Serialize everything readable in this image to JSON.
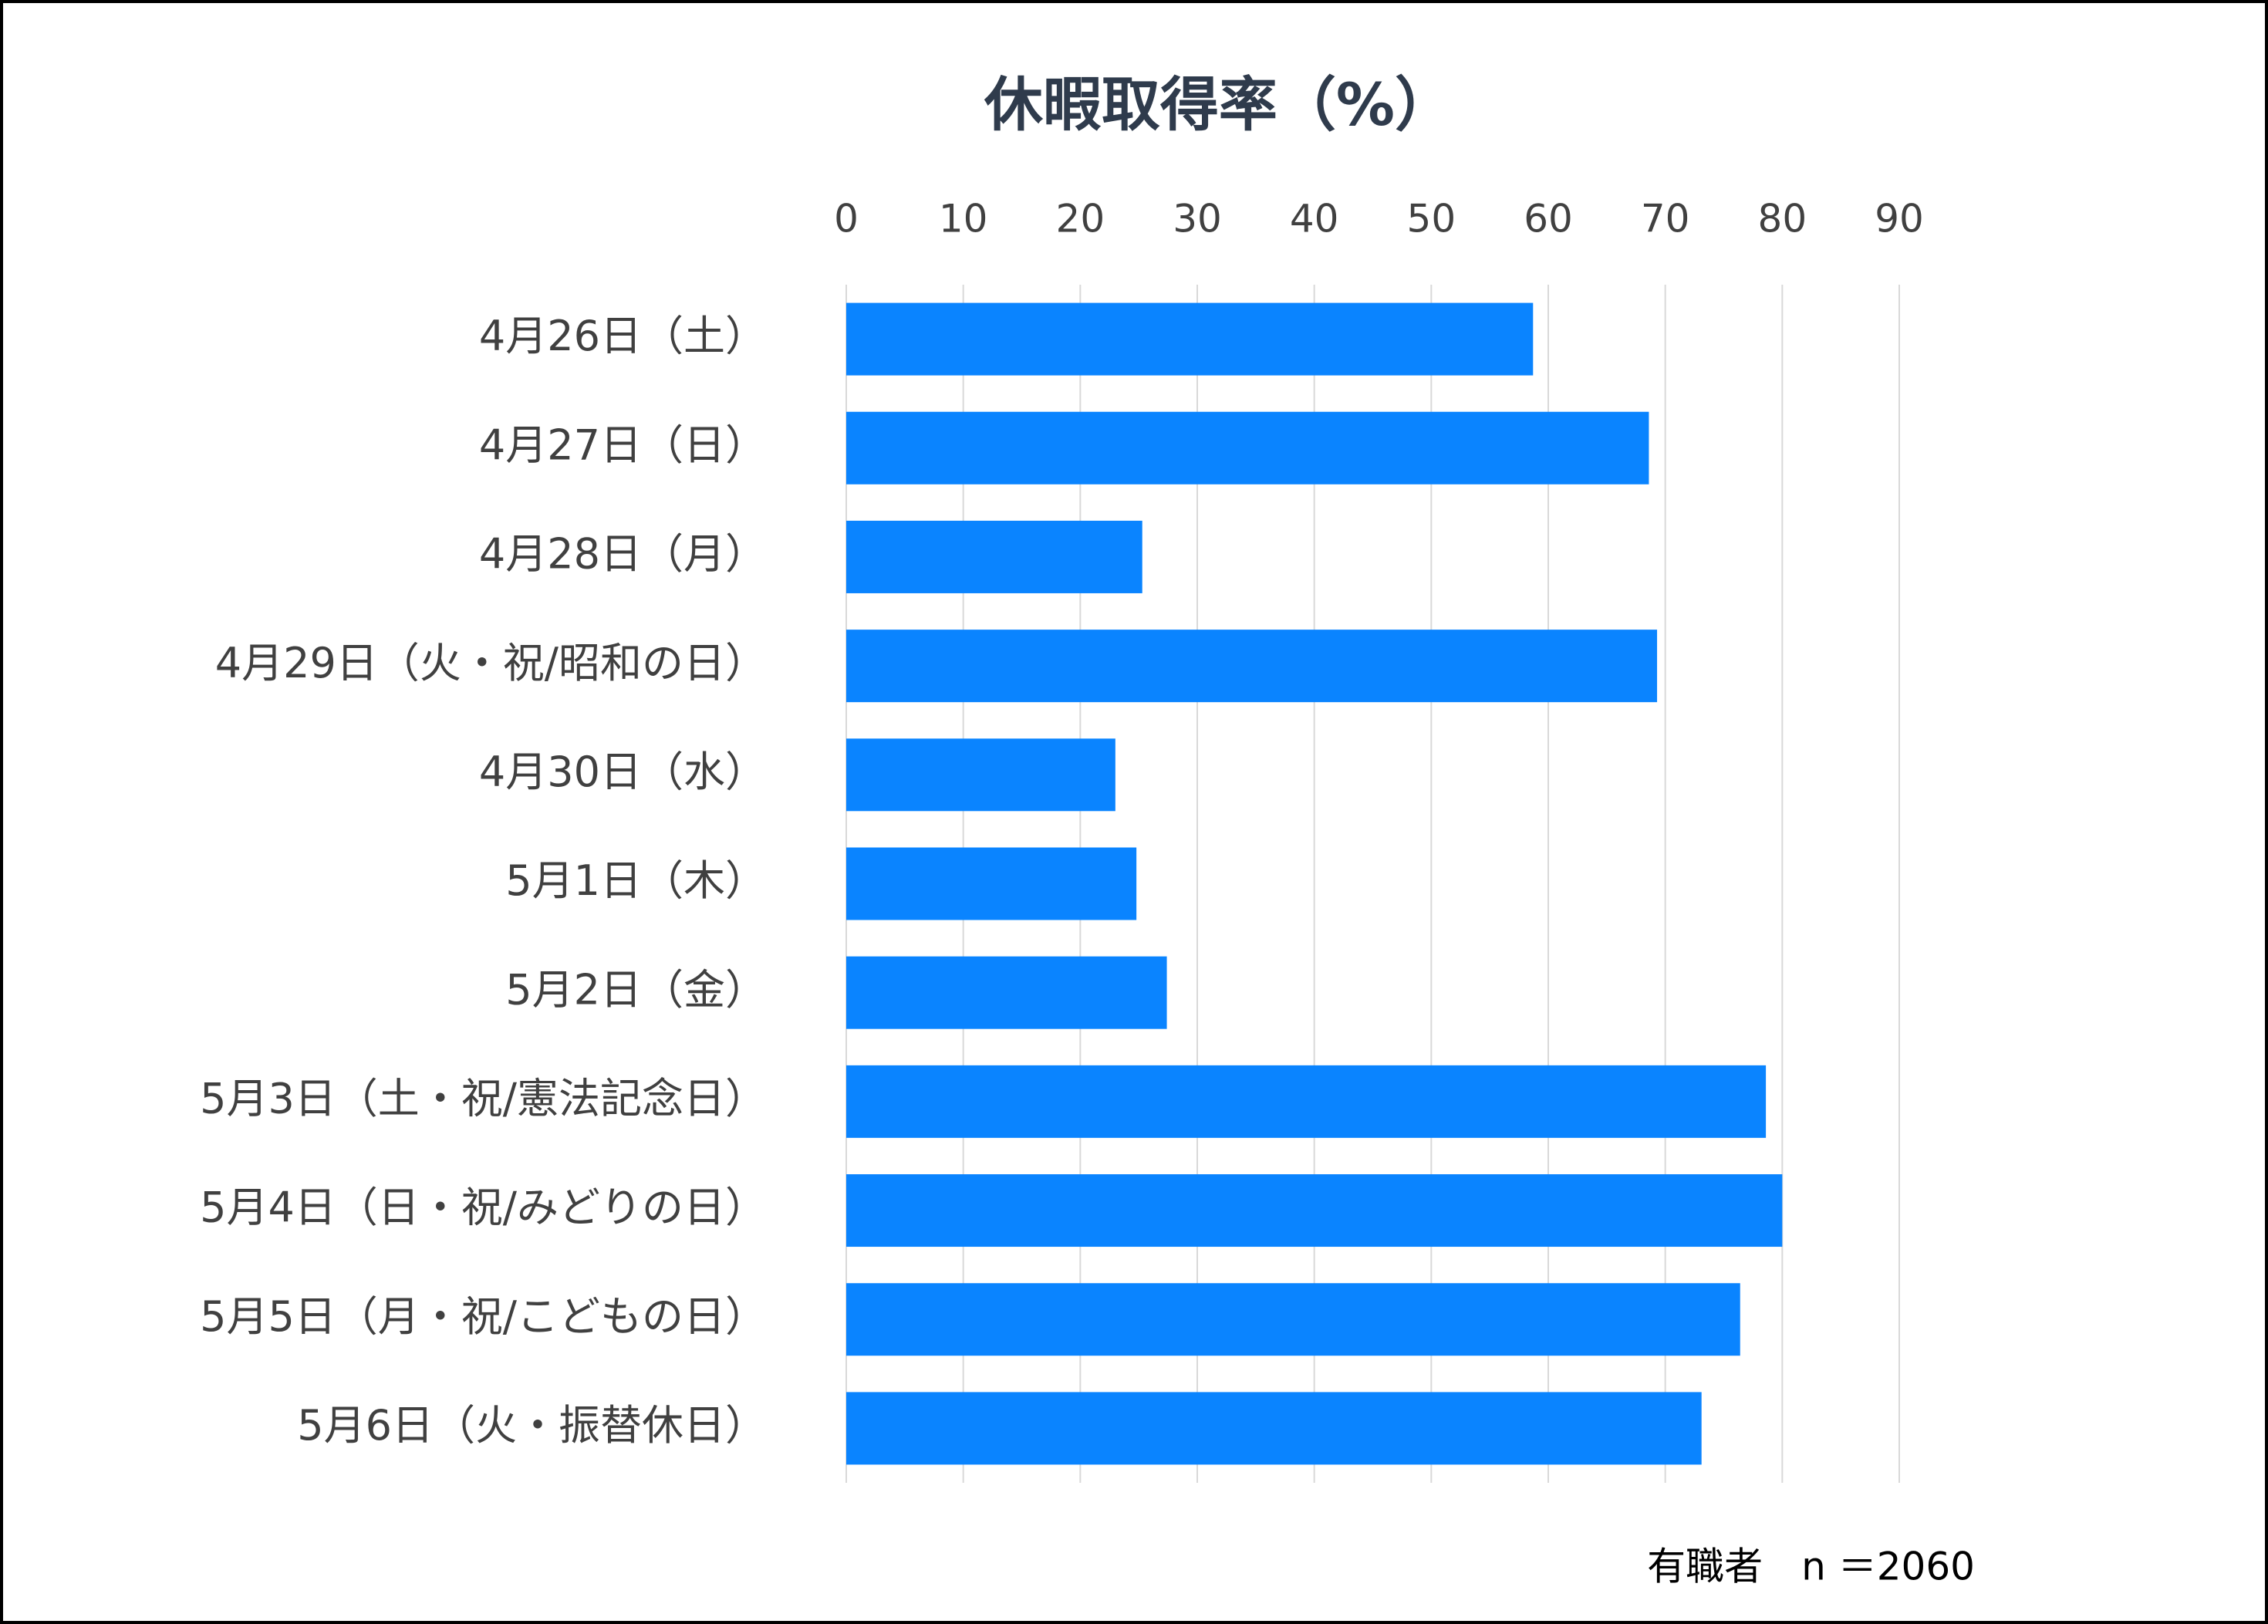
{
  "chart_data": {
    "type": "bar",
    "orientation": "horizontal",
    "title": "休暇取得率（%）",
    "categories": [
      "4月26日（土）",
      "4月27日（日）",
      "4月28日（月）",
      "4月29日（火・祝/昭和の日）",
      "4月30日（水）",
      "5月1日（木）",
      "5月2日（金）",
      "5月3日（土・祝/憲法記念日）",
      "5月4日（日・祝/みどりの日）",
      "5月5日（月・祝/こどもの日）",
      "5月6日（火・振替休日）"
    ],
    "values": [
      58.7,
      68.6,
      25.3,
      69.3,
      23.0,
      24.8,
      27.4,
      78.6,
      80.0,
      76.4,
      73.1
    ],
    "color": "#0a84ff",
    "xlim": [
      0,
      90
    ],
    "xticks": [
      0,
      10,
      20,
      30,
      40,
      50,
      60,
      70,
      80,
      90
    ],
    "grid": true,
    "note": "有職者　n ＝2060"
  }
}
